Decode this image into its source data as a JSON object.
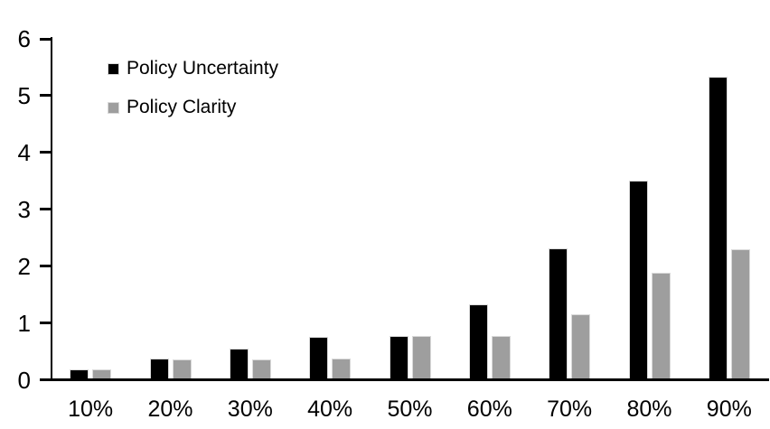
{
  "chart_data": {
    "type": "bar",
    "title": "",
    "xlabel": "",
    "ylabel": "",
    "categories": [
      "10%",
      "20%",
      "30%",
      "40%",
      "50%",
      "60%",
      "70%",
      "80%",
      "90%"
    ],
    "series": [
      {
        "name": "Policy Uncertainty",
        "color": "#000000",
        "values": [
          0.19,
          0.37,
          0.55,
          0.75,
          0.77,
          1.33,
          2.32,
          3.5,
          5.33
        ]
      },
      {
        "name": "Policy Clarity",
        "color": "#9e9e9e",
        "values": [
          0.19,
          0.36,
          0.36,
          0.37,
          0.77,
          0.77,
          1.15,
          1.88,
          2.29
        ]
      }
    ],
    "ylim": [
      0,
      6
    ],
    "yticks": [
      0,
      1,
      2,
      3,
      4,
      5,
      6
    ],
    "grid": false,
    "legend_position": "top-left-inside",
    "axis_color": "#000000",
    "background_color": "#ffffff"
  }
}
